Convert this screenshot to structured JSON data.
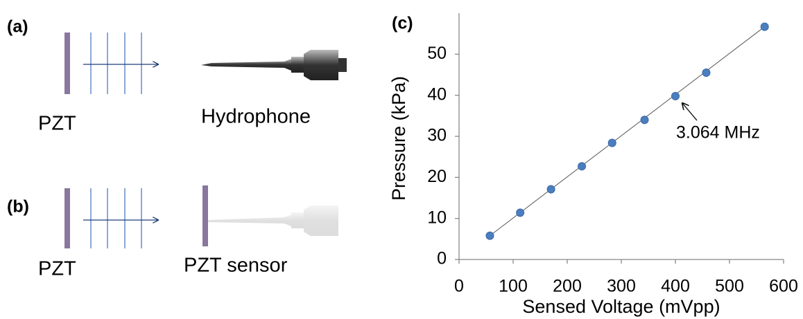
{
  "panels": {
    "a": {
      "label": "(a)",
      "source": "PZT",
      "receiver": "Hydrophone"
    },
    "b": {
      "label": "(b)",
      "source": "PZT",
      "receiver": "PZT sensor"
    }
  },
  "chart_data": {
    "type": "scatter",
    "panel_label": "(c)",
    "x_label": "Sensed Voltage (mVpp)",
    "y_label": "Pressure (kPa)",
    "annotation": "3.064 MHz",
    "x": [
      57,
      113,
      170,
      227,
      283,
      343,
      400,
      457,
      565
    ],
    "values": [
      5.8,
      11.4,
      17.1,
      22.7,
      28.4,
      34.0,
      39.8,
      45.5,
      56.7
    ],
    "color": "#4a7ebf",
    "trendline": true,
    "xlim": [
      0,
      600
    ],
    "xticks": [
      0,
      100,
      200,
      300,
      400,
      500,
      600
    ],
    "ylim": [
      0,
      60
    ],
    "yticks": [
      0,
      10,
      20,
      30,
      40,
      50
    ],
    "grid": false
  }
}
